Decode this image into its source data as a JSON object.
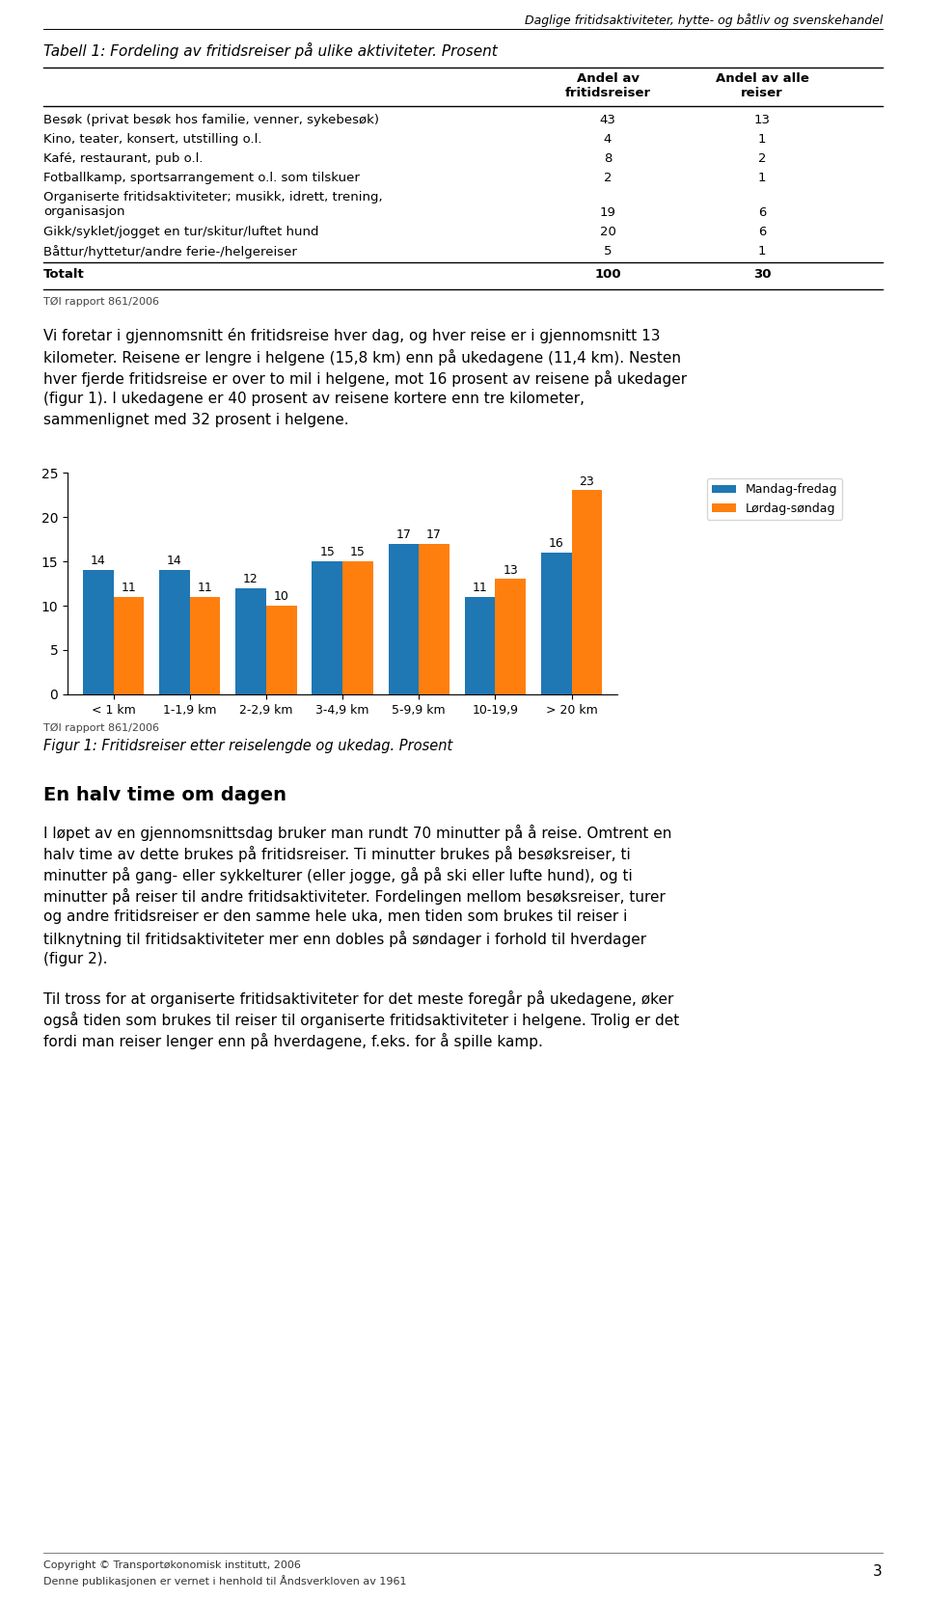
{
  "page_title": "Daglige fritidsaktiviteter, hytte- og båtliv og svenskehandel",
  "table": {
    "title": "Tabell 1: Fordeling av fritidsreiser på ulike aktiviteter. Prosent",
    "columns": [
      "Andel av\nfritidsreiser",
      "Andel av alle\nreiser"
    ],
    "rows": [
      {
        "label": "Besøk (privat besøk hos familie, venner, sykebesøk)",
        "values": [
          43,
          13
        ]
      },
      {
        "label": "Kino, teater, konsert, utstilling o.l.",
        "values": [
          4,
          1
        ]
      },
      {
        "label": "Kafé, restaurant, pub o.l.",
        "values": [
          8,
          2
        ]
      },
      {
        "label": "Fotballkamp, sportsarrangement o.l. som tilskuer",
        "values": [
          2,
          1
        ]
      },
      {
        "label": "Organiserte fritidsaktiviteter; musikk, idrett, trening,\norganisasjon",
        "values": [
          19,
          6
        ]
      },
      {
        "label": "Gikk/syklet/jogget en tur/skitur/luftet hund",
        "values": [
          20,
          6
        ]
      },
      {
        "label": "Båttur/hyttetur/andre ferie-/helgereiser",
        "values": [
          5,
          1
        ]
      },
      {
        "label": "Totalt",
        "values": [
          100,
          30
        ]
      }
    ],
    "source": "TØI rapport 861/2006"
  },
  "paragraph1": [
    "Vi foretar i gjennomsnitt én fritidsreise hver dag, og hver reise er i gjennomsnitt 13",
    "kilometer. Reisene er lengre i helgene (15,8 km) enn på ukedagene (11,4 km). Nesten",
    "hver fjerde fritidsreise er over to mil i helgene, mot 16 prosent av reisene på ukedager",
    "(figur 1). I ukedagene er 40 prosent av reisene kortere enn tre kilometer,",
    "sammenlignet med 32 prosent i helgene."
  ],
  "chart_data": {
    "type": "bar",
    "title": "Figur 1: Fritidsreiser etter reiselengde og ukedag. Prosent",
    "source": "TØI rapport 861/2006",
    "categories": [
      "< 1 km",
      "1-1,9 km",
      "2-2,9 km",
      "3-4,9 km",
      "5-9,9 km",
      "10-19,9",
      "> 20 km"
    ],
    "series": [
      {
        "name": "Mandag-fredag",
        "values": [
          14,
          14,
          12,
          15,
          17,
          11,
          16
        ]
      },
      {
        "name": "Lørdag-søndag",
        "values": [
          11,
          11,
          10,
          15,
          17,
          13,
          23
        ]
      }
    ],
    "ylim": [
      0,
      25
    ],
    "yticks": [
      0,
      5,
      10,
      15,
      20,
      25
    ],
    "data_labels": true,
    "legend": "upper right",
    "grid": false
  },
  "section_title": "En halv time om dagen",
  "paragraph2": [
    "I løpet av en gjennomsnittsdag bruker man rundt 70 minutter på å reise. Omtrent en",
    "halv time av dette brukes på fritidsreiser. Ti minutter brukes på besøksreiser, ti",
    "minutter på gang- eller sykkelturer (eller jogge, gå på ski eller lufte hund), og ti",
    "minutter på reiser til andre fritidsaktiviteter. Fordelingen mellom besøksreiser, turer",
    "og andre fritidsreiser er den samme hele uka, men tiden som brukes til reiser i",
    "tilknytning til fritidsaktiviteter mer enn dobles på søndager i forhold til hverdager",
    "(figur 2)."
  ],
  "paragraph3": [
    "Til tross for at organiserte fritidsaktiviteter for det meste foregår på ukedagene, øker",
    "også tiden som brukes til reiser til organiserte fritidsaktiviteter i helgene. Trolig er det",
    "fordi man reiser lenger enn på hverdagene, f.eks. for å spille kamp."
  ],
  "footer": [
    "Copyright © Transportøkonomisk institutt, 2006",
    "Denne publikasjonen er vernet i henhold til Åndsverkloven av 1961"
  ],
  "page_number": 3
}
